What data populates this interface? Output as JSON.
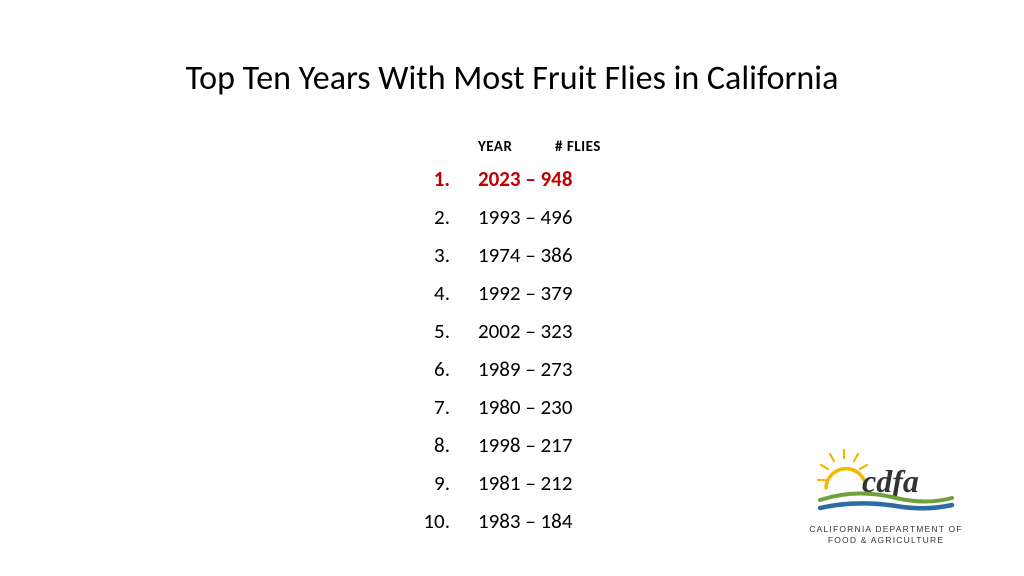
{
  "title": "Top Ten Years With Most Fruit Flies in California",
  "header_year": "YEAR",
  "header_flies": "# FLIES",
  "highlight_color": "#c00000",
  "text_color": "#000000",
  "background_color": "#ffffff",
  "title_fontsize": 34,
  "row_fontsize": 21,
  "header_fontsize": 15,
  "rows": [
    {
      "rank": "1.",
      "text": "2023 – 948",
      "highlight": true
    },
    {
      "rank": "2.",
      "text": "1993 – 496",
      "highlight": false
    },
    {
      "rank": "3.",
      "text": "1974 – 386",
      "highlight": false
    },
    {
      "rank": "4.",
      "text": "1992 – 379",
      "highlight": false
    },
    {
      "rank": "5.",
      "text": "2002 – 323",
      "highlight": false
    },
    {
      "rank": "6.",
      "text": "1989 – 273",
      "highlight": false
    },
    {
      "rank": "7.",
      "text": "1980 – 230",
      "highlight": false
    },
    {
      "rank": "8.",
      "text": "1998 – 217",
      "highlight": false
    },
    {
      "rank": "9.",
      "text": "1981 – 212",
      "highlight": false
    },
    {
      "rank": "10.",
      "text": "1983 – 184",
      "highlight": false
    }
  ],
  "logo": {
    "acronym": "cdfa",
    "line1": "CALIFORNIA DEPARTMENT OF",
    "line2": "FOOD & AGRICULTURE",
    "sun_color": "#f5b800",
    "green_color": "#6fa03a",
    "blue_color": "#2b6ca3",
    "text_color": "#333333"
  }
}
